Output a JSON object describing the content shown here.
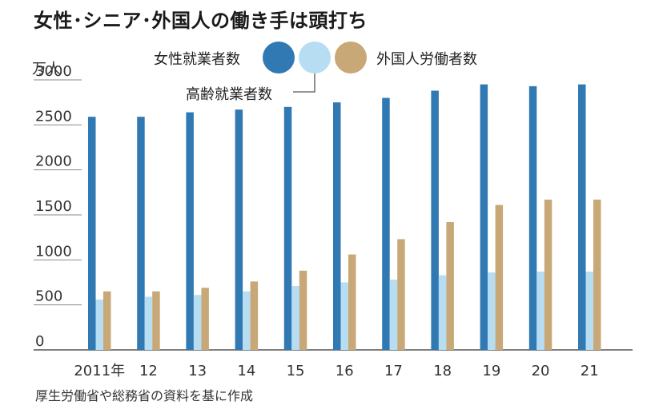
{
  "title": "女性･シニア･外国人の働き手は頭打ち",
  "unit_label": "万人",
  "source": "厚生労働省や総務省の資料を基に作成",
  "legend": {
    "female": "女性就業者数",
    "senior": "高齢就業者数",
    "foreign": "外国人労働者数"
  },
  "colors": {
    "female": "#3079b3",
    "senior": "#b7ddf2",
    "foreign": "#c8a877"
  },
  "chart_data": {
    "type": "bar",
    "categories": [
      "2011年",
      "12",
      "13",
      "14",
      "15",
      "16",
      "17",
      "18",
      "19",
      "20",
      "21"
    ],
    "series": [
      {
        "name": "女性就業者数",
        "values": [
          2590,
          2590,
          2640,
          2670,
          2700,
          2750,
          2800,
          2880,
          2950,
          2930,
          2950
        ]
      },
      {
        "name": "高齢就業者数",
        "values": [
          560,
          590,
          610,
          650,
          710,
          750,
          780,
          830,
          860,
          870,
          870
        ]
      },
      {
        "name": "外国人労働者数",
        "values": [
          650,
          650,
          690,
          760,
          880,
          1060,
          1230,
          1420,
          1610,
          1670,
          1670
        ]
      }
    ],
    "ylim": [
      0,
      3000
    ],
    "yticks": [
      "0",
      "500",
      "1000",
      "1500",
      "2000",
      "2500",
      "3000"
    ],
    "grid": true
  }
}
